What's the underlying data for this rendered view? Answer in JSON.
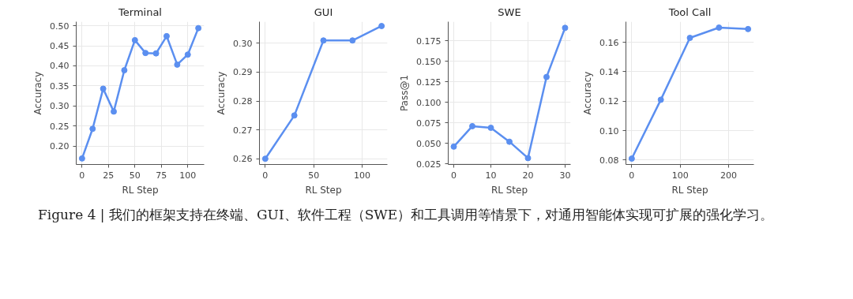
{
  "chart_data": [
    {
      "type": "line",
      "title": "Terminal",
      "xlabel": "RL Step",
      "ylabel": "Accuracy",
      "x": [
        0,
        10,
        20,
        30,
        40,
        50,
        60,
        70,
        80,
        90,
        100,
        110
      ],
      "series": [
        {
          "color": "#5b8ff0",
          "values": [
            0.169,
            0.243,
            0.343,
            0.286,
            0.389,
            0.464,
            0.432,
            0.431,
            0.474,
            0.403,
            0.428,
            0.494
          ]
        }
      ],
      "xlim": [
        -5.5,
        115.5
      ],
      "xticks": [
        0,
        25,
        50,
        75,
        100
      ],
      "ylim": [
        0.154,
        0.51
      ],
      "yticks": [
        {
          "value": 0.2,
          "label": "0.20"
        },
        {
          "value": 0.25,
          "label": "0.25"
        },
        {
          "value": 0.3,
          "label": "0.30"
        },
        0.35,
        {
          "value": 0.4,
          "label": "0.40"
        },
        0.45,
        {
          "value": 0.5,
          "label": "0.50"
        }
      ],
      "grid": true,
      "marker": "circle",
      "line_style": "solid"
    },
    {
      "type": "line",
      "title": "GUI",
      "xlabel": "RL Step",
      "ylabel": "Accuracy",
      "x": [
        0,
        30,
        60,
        90,
        120
      ],
      "series": [
        {
          "color": "#5b8ff0",
          "values": [
            0.26,
            0.275,
            0.301,
            0.301,
            0.306
          ]
        }
      ],
      "xlim": [
        -6,
        126
      ],
      "xticks": [
        0,
        50,
        100
      ],
      "ylim": [
        0.258,
        0.3075
      ],
      "yticks": [
        0.26,
        0.27,
        0.28,
        0.29,
        {
          "value": 0.3,
          "label": "0.30"
        }
      ],
      "grid": true,
      "marker": "circle",
      "line_style": "solid"
    },
    {
      "type": "line",
      "title": "SWE",
      "xlabel": "RL Step",
      "ylabel": "Pass@1",
      "x": [
        0,
        5,
        10,
        15,
        20,
        25,
        30
      ],
      "series": [
        {
          "color": "#5b8ff0",
          "values": [
            0.046,
            0.071,
            0.069,
            0.052,
            0.032,
            0.131,
            0.191
          ]
        }
      ],
      "xlim": [
        -1.5,
        31.5
      ],
      "xticks": [
        0,
        10,
        20,
        30
      ],
      "ylim": [
        0.0242,
        0.1985
      ],
      "yticks": [
        0.025,
        {
          "value": 0.05,
          "label": "0.050"
        },
        0.075,
        {
          "value": 0.1,
          "label": "0.100"
        },
        0.125,
        {
          "value": 0.15,
          "label": "0.150"
        },
        0.175
      ],
      "grid": true,
      "marker": "circle",
      "line_style": "solid"
    },
    {
      "type": "line",
      "title": "Tool Call",
      "xlabel": "RL Step",
      "ylabel": "Accuracy",
      "x": [
        0,
        60,
        120,
        180,
        240
      ],
      "series": [
        {
          "color": "#5b8ff0",
          "values": [
            0.081,
            0.121,
            0.163,
            0.17,
            0.169
          ]
        }
      ],
      "xlim": [
        -12,
        252
      ],
      "xticks": [
        0,
        100,
        200
      ],
      "ylim": [
        0.077,
        0.174
      ],
      "yticks": [
        0.08,
        {
          "value": 0.1,
          "label": "0.10"
        },
        0.12,
        0.14,
        0.16
      ],
      "grid": true,
      "marker": "circle",
      "line_style": "solid",
      "annotations": [
        "Figure 4 | 我们的框架支持在终端、GUI、软件工程（SWE）和工具调用等情景下，对通用智能体实现可扩展的强化学习。"
      ]
    }
  ]
}
